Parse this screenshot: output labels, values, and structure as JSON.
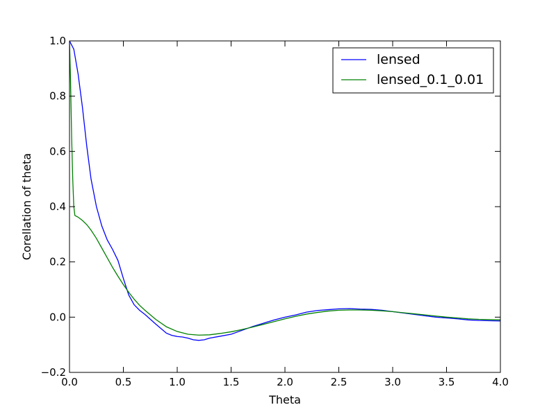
{
  "chart_data": {
    "type": "line",
    "title": "",
    "xlabel": "Theta",
    "ylabel": "Corellation of theta",
    "xlim": [
      0.0,
      4.0
    ],
    "ylim": [
      -0.2,
      1.0
    ],
    "grid": false,
    "legend_position": "top-right",
    "x_ticks": [
      0.0,
      0.5,
      1.0,
      1.5,
      2.0,
      2.5,
      3.0,
      3.5,
      4.0
    ],
    "x_tick_labels": [
      "0.0",
      "0.5",
      "1.0",
      "1.5",
      "2.0",
      "2.5",
      "3.0",
      "3.5",
      "4.0"
    ],
    "y_ticks": [
      -0.2,
      0.0,
      0.2,
      0.4,
      0.6,
      0.8,
      1.0
    ],
    "y_tick_labels": [
      "−0.2",
      "0.0",
      "0.2",
      "0.4",
      "0.6",
      "0.8",
      "1.0"
    ],
    "series": [
      {
        "name": "lensed",
        "color": "#0000ff",
        "x": [
          0.0,
          0.04,
          0.08,
          0.12,
          0.16,
          0.2,
          0.25,
          0.3,
          0.35,
          0.4,
          0.45,
          0.5,
          0.55,
          0.6,
          0.65,
          0.7,
          0.8,
          0.9,
          0.95,
          1.0,
          1.05,
          1.1,
          1.15,
          1.2,
          1.25,
          1.3,
          1.4,
          1.5,
          1.6,
          1.7,
          1.8,
          1.9,
          2.0,
          2.1,
          2.2,
          2.3,
          2.4,
          2.5,
          2.6,
          2.7,
          2.8,
          2.9,
          3.0,
          3.1,
          3.2,
          3.3,
          3.4,
          3.5,
          3.6,
          3.7,
          3.8,
          3.9,
          4.0
        ],
        "values": [
          1.0,
          0.97,
          0.88,
          0.76,
          0.62,
          0.5,
          0.4,
          0.33,
          0.28,
          0.245,
          0.205,
          0.14,
          0.08,
          0.045,
          0.025,
          0.01,
          -0.025,
          -0.058,
          -0.066,
          -0.07,
          -0.072,
          -0.076,
          -0.082,
          -0.084,
          -0.082,
          -0.076,
          -0.069,
          -0.062,
          -0.048,
          -0.034,
          -0.022,
          -0.01,
          0.0,
          0.008,
          0.018,
          0.024,
          0.027,
          0.03,
          0.031,
          0.029,
          0.028,
          0.025,
          0.02,
          0.015,
          0.01,
          0.005,
          0.0,
          -0.003,
          -0.006,
          -0.01,
          -0.012,
          -0.013,
          -0.014
        ]
      },
      {
        "name": "lensed_0.1_0.01",
        "color": "#008000",
        "x": [
          0.0,
          0.01,
          0.02,
          0.03,
          0.04,
          0.05,
          0.08,
          0.12,
          0.16,
          0.2,
          0.25,
          0.3,
          0.35,
          0.4,
          0.45,
          0.5,
          0.55,
          0.6,
          0.65,
          0.7,
          0.8,
          0.9,
          1.0,
          1.1,
          1.2,
          1.3,
          1.4,
          1.5,
          1.6,
          1.7,
          1.8,
          1.9,
          2.0,
          2.1,
          2.2,
          2.3,
          2.4,
          2.5,
          2.6,
          2.7,
          2.8,
          2.9,
          3.0,
          3.1,
          3.2,
          3.3,
          3.4,
          3.5,
          3.6,
          3.7,
          3.8,
          3.9,
          4.0
        ],
        "values": [
          1.0,
          0.85,
          0.65,
          0.5,
          0.4,
          0.368,
          0.362,
          0.35,
          0.335,
          0.315,
          0.285,
          0.25,
          0.215,
          0.18,
          0.148,
          0.118,
          0.09,
          0.065,
          0.043,
          0.025,
          -0.008,
          -0.035,
          -0.052,
          -0.062,
          -0.065,
          -0.064,
          -0.059,
          -0.053,
          -0.045,
          -0.036,
          -0.026,
          -0.016,
          -0.006,
          0.003,
          0.011,
          0.017,
          0.022,
          0.025,
          0.026,
          0.026,
          0.025,
          0.023,
          0.02,
          0.016,
          0.012,
          0.008,
          0.004,
          0.0,
          -0.003,
          -0.006,
          -0.008,
          -0.009,
          -0.01
        ]
      }
    ]
  }
}
